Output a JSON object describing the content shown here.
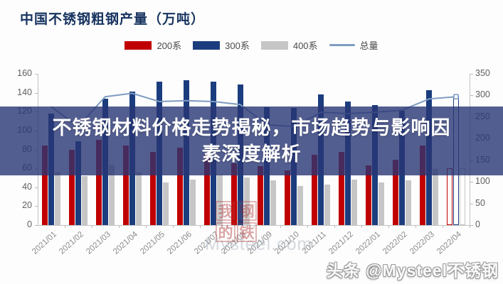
{
  "title": "中国不锈钢粗钢产量（万吨）",
  "legend": [
    {
      "label": "200系",
      "color": "#c00000",
      "type": "bar"
    },
    {
      "label": "300系",
      "color": "#1b3d7e",
      "type": "bar"
    },
    {
      "label": "400系",
      "color": "#c6c6c6",
      "type": "bar"
    },
    {
      "label": "总量",
      "color": "#7e9cc0",
      "type": "line"
    }
  ],
  "banner": {
    "line1": "不锈钢材料价格走势揭秘，市场趋势与影响因",
    "line2": "素深度解析"
  },
  "watermarks": {
    "center_chars": [
      "我",
      "的",
      "钢",
      "铁"
    ],
    "center_site": "Mysteel.com",
    "corner": "头条 @Mysteel不锈钢"
  },
  "chart_data": {
    "type": "bar",
    "title": "中国不锈钢粗钢产量（万吨）",
    "categories": [
      "2021/01",
      "2021/02",
      "2021/03",
      "2021/04",
      "2021/05",
      "2021/06",
      "2021/07",
      "2021/08",
      "2021/09",
      "2021/10",
      "2021/11",
      "2021/12",
      "2022/01",
      "2022/02",
      "2022/03",
      "2022/04"
    ],
    "series": [
      {
        "name": "200系",
        "type": "bar",
        "axis": "left",
        "color": "#c00000",
        "values": [
          84,
          80,
          90,
          84,
          77,
          82,
          75,
          65,
          62,
          58,
          74,
          77,
          63,
          69,
          84,
          60
        ]
      },
      {
        "name": "300系",
        "type": "bar",
        "axis": "left",
        "color": "#1b3d7e",
        "values": [
          118,
          89,
          134,
          141,
          152,
          153,
          152,
          149,
          125,
          124,
          138,
          131,
          127,
          121,
          143,
          137
        ]
      },
      {
        "name": "400系",
        "type": "bar",
        "axis": "left",
        "color": "#c6c6c6",
        "values": [
          56,
          52,
          64,
          56,
          45,
          48,
          53,
          50,
          47,
          41,
          43,
          48,
          45,
          47,
          59,
          60
        ]
      },
      {
        "name": "总量",
        "type": "line",
        "axis": "right",
        "color": "#7e9cc0",
        "values": [
          274,
          228,
          297,
          305,
          286,
          288,
          286,
          279,
          232,
          228,
          261,
          258,
          261,
          266,
          292,
          297
        ]
      }
    ],
    "left_axis": {
      "min": 0,
      "max": 160,
      "step": 20
    },
    "right_axis": {
      "min": 0,
      "max": 350,
      "step": 50
    },
    "legend_position": "top",
    "grid": false,
    "last_group_outlined": true
  }
}
